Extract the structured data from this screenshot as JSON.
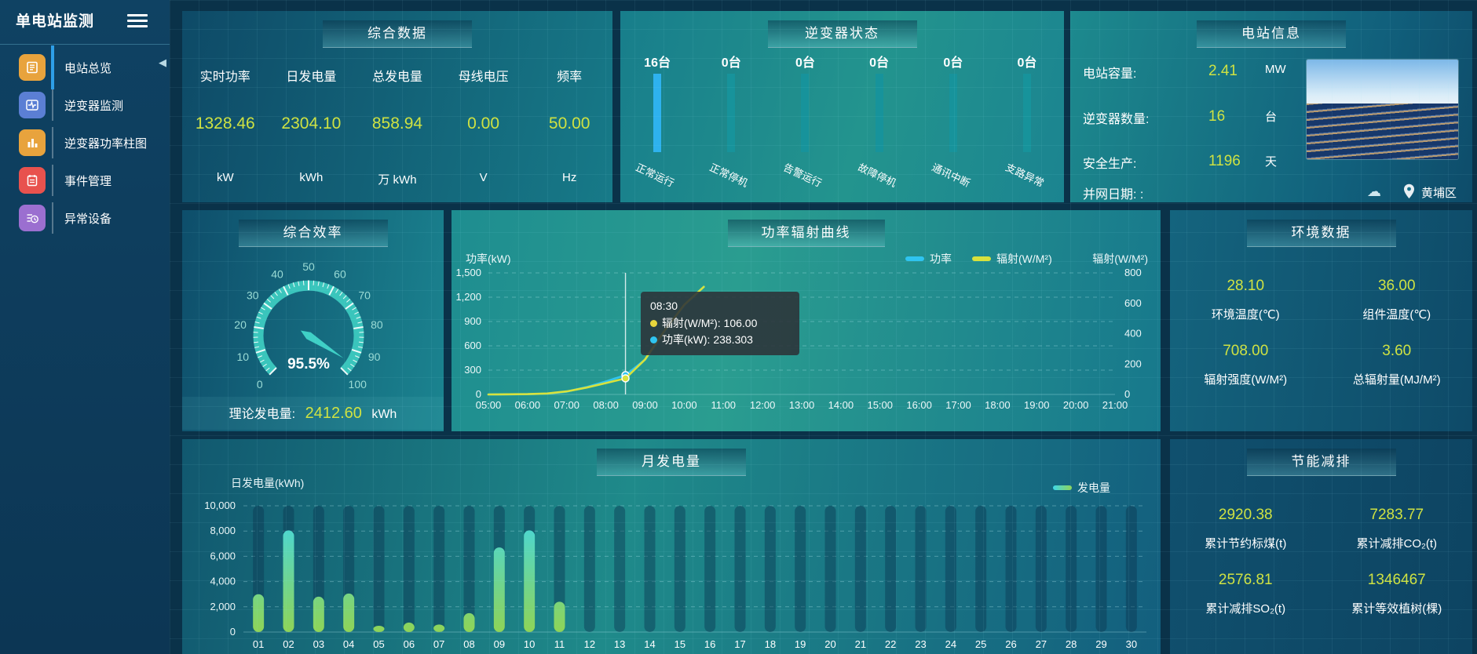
{
  "sidebar": {
    "title": "单电站监测",
    "items": [
      {
        "label": "电站总览",
        "icon_color": "#e8a33d",
        "active": true
      },
      {
        "label": "逆变器监测",
        "icon_color": "#5b7fd4",
        "active": false
      },
      {
        "label": "逆变器功率柱图",
        "icon_color": "#e8a33d",
        "active": false
      },
      {
        "label": "事件管理",
        "icon_color": "#e8524e",
        "active": false
      },
      {
        "label": "异常设备",
        "icon_color": "#9b6fd0",
        "active": false
      }
    ]
  },
  "overview": {
    "header": "综合数据",
    "metrics": [
      {
        "label": "实时功率",
        "value": "1328.46",
        "unit": "kW"
      },
      {
        "label": "日发电量",
        "value": "2304.10",
        "unit": "kWh"
      },
      {
        "label": "总发电量",
        "value": "858.94",
        "unit": "万 kWh"
      },
      {
        "label": "母线电压",
        "value": "0.00",
        "unit": "V"
      },
      {
        "label": "频率",
        "value": "50.00",
        "unit": "Hz"
      }
    ]
  },
  "inverter_status": {
    "header": "逆变器状态",
    "columns": [
      {
        "count": "16台",
        "label": "正常运行",
        "bar_color": "#2eb2ee"
      },
      {
        "count": "0台",
        "label": "正常停机",
        "bar_color": "#17939b"
      },
      {
        "count": "0台",
        "label": "告警运行",
        "bar_color": "#17939b"
      },
      {
        "count": "0台",
        "label": "故障停机",
        "bar_color": "#17939b"
      },
      {
        "count": "0台",
        "label": "通讯中断",
        "bar_color": "#17939b"
      },
      {
        "count": "0台",
        "label": "支路异常",
        "bar_color": "#17939b"
      }
    ]
  },
  "station_info": {
    "header": "电站信息",
    "rows": [
      {
        "label": "电站容量:",
        "value": "2.41",
        "unit": "MW"
      },
      {
        "label": "逆变器数量:",
        "value": "16",
        "unit": "台"
      },
      {
        "label": "安全生产:",
        "value": "1196",
        "unit": "天"
      }
    ],
    "grid_date": "并网日期:  :",
    "location": "黄埔区"
  },
  "efficiency": {
    "header": "综合效率",
    "gauge_value": "95.5%",
    "theory": {
      "label": "理论发电量:",
      "value": "2412.60",
      "unit": "kWh"
    }
  },
  "power_curve": {
    "header": "功率辐射曲线",
    "y_left_title": "功率(kW)",
    "y_right_title": "辐射(W/M²)",
    "legend": [
      {
        "label": "功率",
        "color": "#2fc4f0"
      },
      {
        "label": "辐射(W/M²)",
        "color": "#d8e23c"
      }
    ],
    "tooltip": {
      "time": "08:30",
      "rows": [
        {
          "text": "辐射(W/M²): 106.00",
          "color": "#e8d63c"
        },
        {
          "text": "功率(kW): 238.303",
          "color": "#2fc4f0"
        }
      ]
    }
  },
  "environment": {
    "header": "环境数据",
    "items": [
      {
        "value": "28.10",
        "label": "环境温度(℃)"
      },
      {
        "value": "36.00",
        "label": "组件温度(℃)"
      },
      {
        "value": "708.00",
        "label": "辐射强度(W/M²)"
      },
      {
        "value": "3.60",
        "label": "总辐射量(MJ/M²)"
      }
    ]
  },
  "monthly": {
    "header": "月发电量",
    "ylabel": "日发电量(kWh)",
    "legend": "发电量"
  },
  "saving": {
    "header": "节能减排",
    "items": [
      {
        "value": "2920.38",
        "label": "累计节约标煤(t)"
      },
      {
        "value": "7283.77",
        "label": "累计减排CO₂(t)"
      },
      {
        "value": "2576.81",
        "label": "累计减排SO₂(t)"
      },
      {
        "value": "1346467",
        "label": "累计等效植树(棵)"
      }
    ]
  },
  "chart_data": [
    {
      "id": "power_radiation_curve",
      "type": "line",
      "title": "功率辐射曲线",
      "x_labels": [
        "05:00",
        "06:00",
        "07:00",
        "08:00",
        "09:00",
        "10:00",
        "11:00",
        "12:00",
        "13:00",
        "14:00",
        "15:00",
        "16:00",
        "17:00",
        "18:00",
        "19:00",
        "20:00",
        "21:00"
      ],
      "x_range": [
        5,
        21
      ],
      "y_left": {
        "name": "功率(kW)",
        "min": 0,
        "max": 1500,
        "labels": [
          "0",
          "300",
          "600",
          "900",
          "1,200",
          "1,500"
        ]
      },
      "y_right": {
        "name": "辐射(W/M²)",
        "min": 0,
        "max": 800,
        "labels": [
          "0",
          "200",
          "400",
          "600",
          "800"
        ]
      },
      "legend_position": "top-right",
      "grid": true,
      "series": [
        {
          "name": "功率",
          "axis": "left",
          "color": "#2fc4f0",
          "x": [
            5,
            6,
            6.5,
            7,
            7.5,
            8,
            8.5,
            9,
            9.5,
            10,
            10.5
          ],
          "y": [
            0,
            3,
            10,
            35,
            90,
            160,
            238.303,
            430,
            780,
            1100,
            1328.46
          ]
        },
        {
          "name": "辐射(W/M²)",
          "axis": "right",
          "color": "#d8e23c",
          "x": [
            5,
            6,
            6.5,
            7,
            7.5,
            8,
            8.5,
            9,
            9.5,
            10,
            10.5
          ],
          "y": [
            0,
            2,
            6,
            20,
            45,
            75,
            106,
            230,
            420,
            590,
            708
          ]
        }
      ],
      "hover": {
        "x": 8.5,
        "label": "08:30",
        "power": 238.303,
        "radiation": 106.0
      }
    },
    {
      "id": "monthly_generation",
      "type": "bar",
      "title": "月发电量",
      "xlabel": "",
      "ylabel": "日发电量(kWh)",
      "ylim": [
        0,
        10000
      ],
      "y_labels": [
        "0",
        "2,000",
        "4,000",
        "6,000",
        "8,000",
        "10,000"
      ],
      "legend": "发电量",
      "legend_colors": [
        "#3fd7e8",
        "#8fd457"
      ],
      "grid": true,
      "categories": [
        "01",
        "02",
        "03",
        "04",
        "05",
        "06",
        "07",
        "08",
        "09",
        "10",
        "11",
        "12",
        "13",
        "14",
        "15",
        "16",
        "17",
        "18",
        "19",
        "20",
        "21",
        "22",
        "23",
        "24",
        "25",
        "26",
        "27",
        "28",
        "29",
        "30"
      ],
      "values": [
        3000,
        8050,
        2800,
        3050,
        500,
        750,
        600,
        1500,
        6700,
        8050,
        2400,
        0,
        0,
        0,
        0,
        0,
        0,
        0,
        0,
        0,
        0,
        0,
        0,
        0,
        0,
        0,
        0,
        0,
        0,
        0
      ]
    },
    {
      "id": "efficiency_gauge",
      "type": "gauge",
      "title": "综合效率",
      "value": 95.5,
      "display": "95.5%",
      "min": 0,
      "max": 100,
      "tick_labels": [
        0,
        10,
        20,
        30,
        40,
        50,
        60,
        70,
        80,
        90,
        100
      ]
    },
    {
      "id": "inverter_status_bars",
      "type": "bar",
      "title": "逆变器状态",
      "unit": "台",
      "categories": [
        "正常运行",
        "正常停机",
        "告警运行",
        "故障停机",
        "通讯中断",
        "支路异常"
      ],
      "values": [
        16,
        0,
        0,
        0,
        0,
        0
      ]
    }
  ]
}
